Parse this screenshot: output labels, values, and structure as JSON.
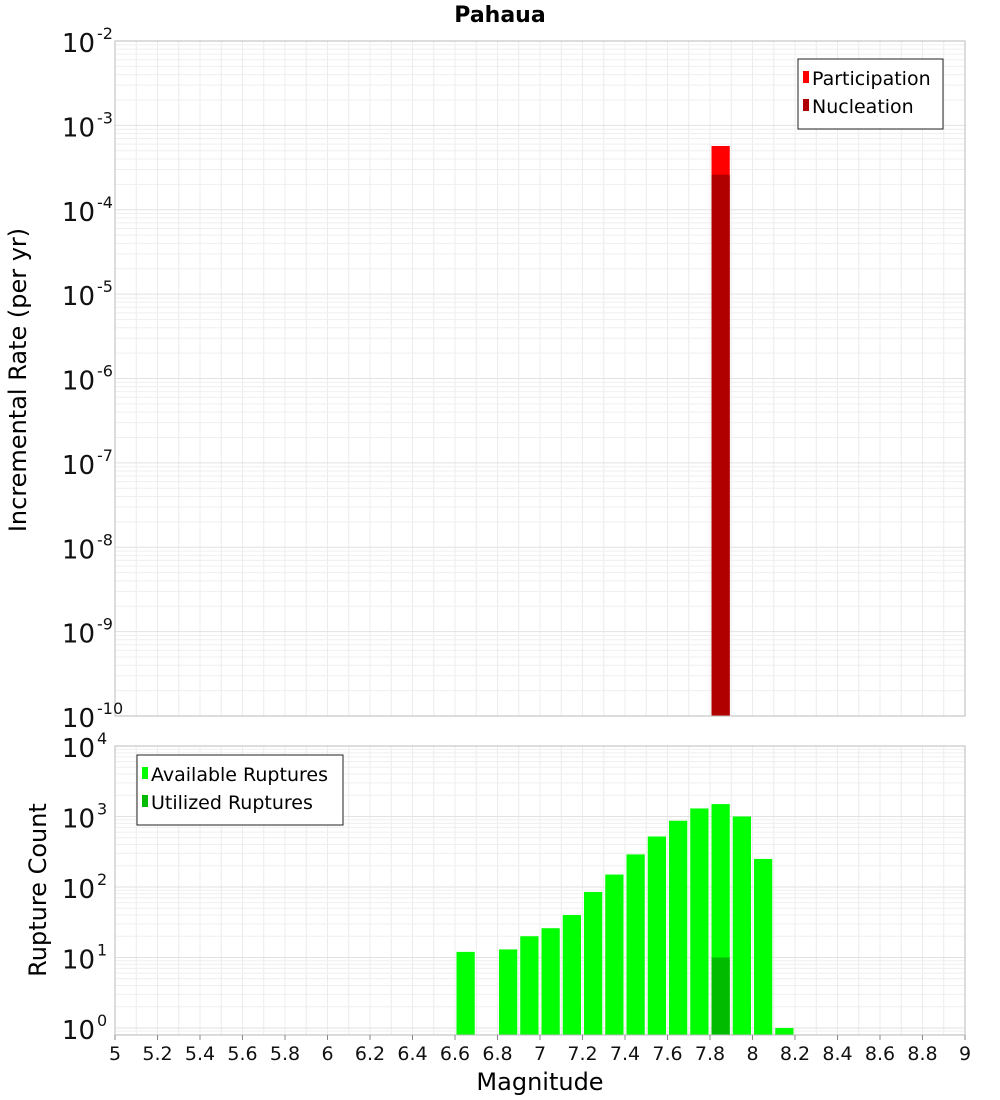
{
  "chart_data": [
    {
      "type": "bar",
      "title": "Pahaua",
      "ylabel": "Incremental Rate (per yr)",
      "xlabel": "",
      "yscale": "log",
      "xlim": [
        5,
        9
      ],
      "ylim_exp": [
        -10,
        -2
      ],
      "y_ticks": [
        {
          "base": "10",
          "exp": "-2"
        },
        {
          "base": "10",
          "exp": "-3"
        },
        {
          "base": "10",
          "exp": "-4"
        },
        {
          "base": "10",
          "exp": "-5"
        },
        {
          "base": "10",
          "exp": "-6"
        },
        {
          "base": "10",
          "exp": "-7"
        },
        {
          "base": "10",
          "exp": "-8"
        },
        {
          "base": "10",
          "exp": "-9"
        },
        {
          "base": "10",
          "exp": "-10"
        }
      ],
      "grid": true,
      "legend_position": "top-right",
      "series": [
        {
          "name": "Participation",
          "color": "#ff0000",
          "x": [
            7.85
          ],
          "values": [
            0.00057
          ]
        },
        {
          "name": "Nucleation",
          "color": "#b00000",
          "x": [
            7.85
          ],
          "values": [
            0.00026
          ]
        }
      ]
    },
    {
      "type": "bar",
      "title": "",
      "ylabel": "Rupture Count",
      "xlabel": "Magnitude",
      "yscale": "log",
      "xlim": [
        5,
        9
      ],
      "ylim_exp": [
        -0.1,
        4
      ],
      "x_ticks": [
        "5",
        "5.2",
        "5.4",
        "5.6",
        "5.8",
        "6",
        "6.2",
        "6.4",
        "6.6",
        "6.8",
        "7",
        "7.2",
        "7.4",
        "7.6",
        "7.8",
        "8",
        "8.2",
        "8.4",
        "8.6",
        "8.8",
        "9"
      ],
      "y_ticks": [
        {
          "base": "10",
          "exp": "4"
        },
        {
          "base": "10",
          "exp": "3"
        },
        {
          "base": "10",
          "exp": "2"
        },
        {
          "base": "10",
          "exp": "1"
        },
        {
          "base": "10",
          "exp": "0"
        }
      ],
      "grid": true,
      "legend_position": "top-left",
      "series": [
        {
          "name": "Available Ruptures",
          "color": "#00ff00",
          "x": [
            6.65,
            6.85,
            6.95,
            7.05,
            7.15,
            7.25,
            7.35,
            7.45,
            7.55,
            7.65,
            7.75,
            7.85,
            7.95,
            8.05,
            8.15
          ],
          "values": [
            12,
            13,
            20,
            26,
            40,
            85,
            150,
            290,
            520,
            870,
            1300,
            1500,
            1000,
            250,
            1
          ]
        },
        {
          "name": "Utilized Ruptures",
          "color": "#00bb00",
          "x": [
            7.85
          ],
          "values": [
            10
          ]
        }
      ]
    }
  ]
}
